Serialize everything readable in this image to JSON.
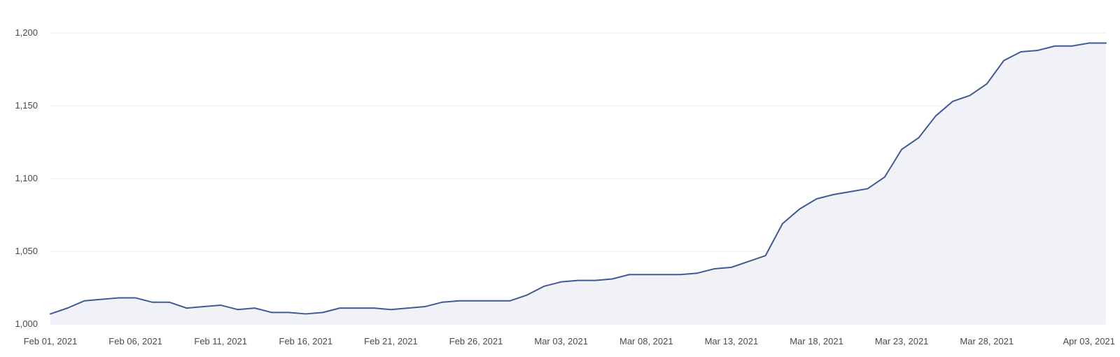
{
  "chart_data": {
    "type": "area",
    "title": "",
    "xlabel": "",
    "ylabel": "",
    "ylim": [
      1000,
      1200
    ],
    "y_ticks": [
      1000,
      1050,
      1100,
      1150,
      1200
    ],
    "y_tick_labels": [
      "1,000",
      "1,050",
      "1,100",
      "1,150",
      "1,200"
    ],
    "x_tick_dates": [
      "2021-02-01",
      "2021-02-06",
      "2021-02-11",
      "2021-02-16",
      "2021-02-21",
      "2021-02-26",
      "2021-03-03",
      "2021-03-08",
      "2021-03-13",
      "2021-03-18",
      "2021-03-23",
      "2021-03-28",
      "2021-04-03"
    ],
    "x_tick_labels": [
      "Feb 01, 2021",
      "Feb 06, 2021",
      "Feb 11, 2021",
      "Feb 16, 2021",
      "Feb 21, 2021",
      "Feb 26, 2021",
      "Mar 03, 2021",
      "Mar 08, 2021",
      "Mar 13, 2021",
      "Mar 18, 2021",
      "Mar 23, 2021",
      "Mar 28, 2021",
      "Apr 03, 2021"
    ],
    "grid": true,
    "legend": "none",
    "colors": {
      "line": "#3f5b96",
      "fill": "#f0f2f7",
      "grid": "#ececec",
      "text": "#4a4a4a"
    },
    "x": [
      "2021-02-01",
      "2021-02-02",
      "2021-02-03",
      "2021-02-04",
      "2021-02-05",
      "2021-02-06",
      "2021-02-07",
      "2021-02-08",
      "2021-02-09",
      "2021-02-10",
      "2021-02-11",
      "2021-02-12",
      "2021-02-13",
      "2021-02-14",
      "2021-02-15",
      "2021-02-16",
      "2021-02-17",
      "2021-02-18",
      "2021-02-19",
      "2021-02-20",
      "2021-02-21",
      "2021-02-22",
      "2021-02-23",
      "2021-02-24",
      "2021-02-25",
      "2021-02-26",
      "2021-02-27",
      "2021-02-28",
      "2021-03-01",
      "2021-03-02",
      "2021-03-03",
      "2021-03-04",
      "2021-03-05",
      "2021-03-06",
      "2021-03-07",
      "2021-03-08",
      "2021-03-09",
      "2021-03-10",
      "2021-03-11",
      "2021-03-12",
      "2021-03-13",
      "2021-03-14",
      "2021-03-15",
      "2021-03-16",
      "2021-03-17",
      "2021-03-18",
      "2021-03-19",
      "2021-03-20",
      "2021-03-21",
      "2021-03-22",
      "2021-03-23",
      "2021-03-24",
      "2021-03-25",
      "2021-03-26",
      "2021-03-27",
      "2021-03-28",
      "2021-03-29",
      "2021-03-30",
      "2021-03-31",
      "2021-04-01",
      "2021-04-02",
      "2021-04-03",
      "2021-04-04"
    ],
    "series": [
      {
        "values": [
          1007,
          1011,
          1016,
          1017,
          1018,
          1018,
          1015,
          1015,
          1011,
          1012,
          1013,
          1010,
          1011,
          1008,
          1008,
          1007,
          1008,
          1011,
          1011,
          1011,
          1010,
          1011,
          1012,
          1015,
          1016,
          1016,
          1016,
          1016,
          1020,
          1026,
          1029,
          1030,
          1030,
          1031,
          1034,
          1034,
          1034,
          1034,
          1035,
          1038,
          1039,
          1043,
          1047,
          1069,
          1079,
          1086,
          1089,
          1091,
          1093,
          1101,
          1120,
          1128,
          1143,
          1153,
          1157,
          1165,
          1181,
          1187,
          1188,
          1191,
          1191,
          1193,
          1193
        ]
      }
    ]
  }
}
